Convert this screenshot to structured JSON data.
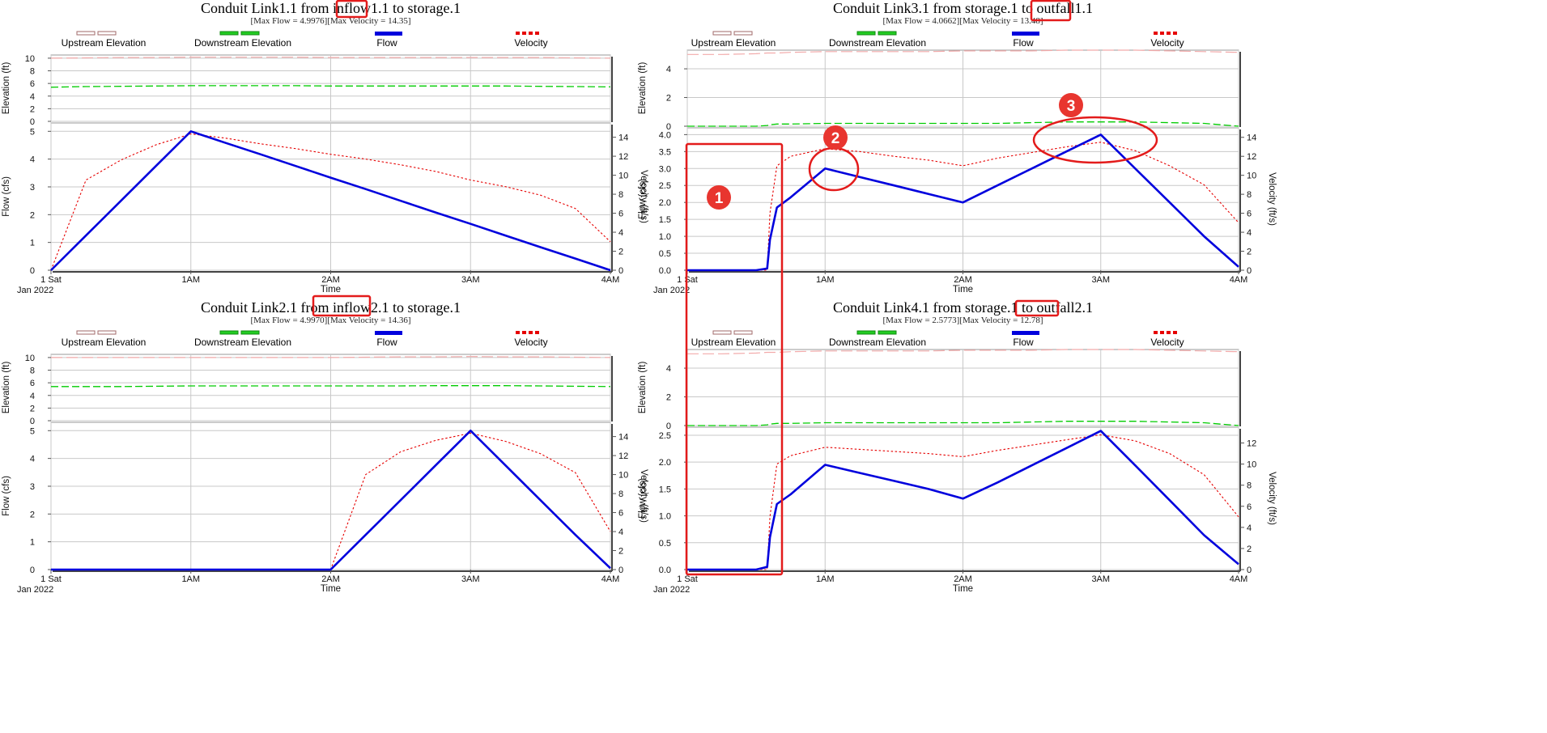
{
  "chart_data": [
    {
      "type": "line",
      "title": "Conduit Link1.1 from inflow1.1 to storage.1",
      "subtitle": "[Max Flow = 4.9976][Max Velocity = 14.35]",
      "xlabel": "Time",
      "x_ticks": [
        "1 Sat",
        "1AM",
        "2AM",
        "3AM",
        "4AM"
      ],
      "x_date_label": "Jan 2022",
      "elev_ylabel": "Elevation (ft)",
      "elev_ticks": [
        "0",
        "2",
        "4",
        "6",
        "8",
        "10"
      ],
      "elev_ylim": [
        0,
        10.5
      ],
      "flow_ylabel": "Flow (cfs)",
      "flow_ticks": [
        "0",
        "1",
        "2",
        "3",
        "4",
        "5"
      ],
      "flow_ylim": [
        0,
        5.3
      ],
      "vel_ylabel": "Velocity (ft/s)",
      "vel_ticks": [
        "0",
        "2",
        "4",
        "6",
        "8",
        "10",
        "12",
        "14"
      ],
      "vel_ylim": [
        0,
        15.5
      ],
      "legend": [
        "Upstream Elevation",
        "Downstream Elevation",
        "Flow",
        "Velocity"
      ],
      "x": [
        0,
        0.25,
        0.5,
        0.75,
        1,
        1.25,
        1.5,
        1.75,
        2,
        2.25,
        2.5,
        2.75,
        3,
        3.25,
        3.5,
        3.75,
        4
      ],
      "upstream_elevation": [
        10.0,
        10.05,
        10.1,
        10.1,
        10.15,
        10.15,
        10.15,
        10.15,
        10.1,
        10.1,
        10.1,
        10.1,
        10.1,
        10.1,
        10.1,
        10.05,
        10.0
      ],
      "downstream_elevation": [
        5.4,
        5.5,
        5.55,
        5.6,
        5.65,
        5.65,
        5.65,
        5.65,
        5.6,
        5.6,
        5.6,
        5.6,
        5.6,
        5.6,
        5.55,
        5.5,
        5.45
      ],
      "flow": [
        0,
        1.25,
        2.5,
        3.75,
        5.0,
        4.58,
        4.17,
        3.75,
        3.33,
        2.92,
        2.5,
        2.08,
        1.67,
        1.25,
        0.83,
        0.42,
        0.0
      ],
      "velocity": [
        0,
        9.5,
        11.6,
        13.2,
        14.35,
        13.9,
        13.3,
        12.8,
        12.2,
        11.7,
        11.1,
        10.4,
        9.5,
        8.8,
        7.9,
        6.5,
        3.0
      ],
      "annotations": [
        {
          "type": "box",
          "target": "inflow1.1"
        }
      ]
    },
    {
      "type": "line",
      "title": "Conduit Link3.1 from storage.1 to outfall1.1",
      "subtitle": "[Max Flow = 4.0662][Max Velocity = 13.48]",
      "xlabel": "Time",
      "x_ticks": [
        "1 Sat",
        "1AM",
        "2AM",
        "3AM",
        "4AM"
      ],
      "x_date_label": "Jan 2022",
      "elev_ylabel": "Elevation (ft)",
      "elev_ticks": [
        "0",
        "2",
        "4"
      ],
      "elev_ylim": [
        0,
        5.3
      ],
      "flow_ylabel": "Flow (cfs)",
      "flow_ticks": [
        "0.0",
        "0.5",
        "1.0",
        "1.5",
        "2.0",
        "2.5",
        "3.0",
        "3.5",
        "4.0"
      ],
      "flow_ylim": [
        0,
        4.2
      ],
      "vel_ylabel": "Velocity (ft/s)",
      "vel_ticks": [
        "0",
        "2",
        "4",
        "6",
        "8",
        "10",
        "12",
        "14"
      ],
      "vel_ylim": [
        0,
        15.0
      ],
      "legend": [
        "Upstream Elevation",
        "Downstream Elevation",
        "Flow",
        "Velocity"
      ],
      "x": [
        0,
        0.25,
        0.5,
        0.58,
        0.6,
        0.65,
        0.75,
        1,
        1.25,
        1.5,
        1.75,
        2,
        2.25,
        2.5,
        2.75,
        3,
        3.25,
        3.5,
        3.75,
        4
      ],
      "upstream_elevation": [
        5.0,
        5.0,
        5.05,
        5.1,
        5.1,
        5.1,
        5.15,
        5.2,
        5.2,
        5.2,
        5.2,
        5.25,
        5.25,
        5.25,
        5.3,
        5.3,
        5.3,
        5.25,
        5.2,
        5.15
      ],
      "downstream_elevation": [
        0.0,
        0.0,
        0.0,
        0.05,
        0.1,
        0.15,
        0.15,
        0.2,
        0.2,
        0.2,
        0.2,
        0.2,
        0.2,
        0.25,
        0.3,
        0.3,
        0.3,
        0.25,
        0.2,
        0.0
      ],
      "flow": [
        0,
        0,
        0,
        0.05,
        0.9,
        1.85,
        2.15,
        3.0,
        2.75,
        2.5,
        2.25,
        2.0,
        2.5,
        3.0,
        3.5,
        4.0,
        3.0,
        2.0,
        1.0,
        0.1
      ],
      "velocity": [
        0,
        0,
        0,
        0,
        6.0,
        11.0,
        12.0,
        12.8,
        12.5,
        12.0,
        11.6,
        11.0,
        11.8,
        12.4,
        13.0,
        13.48,
        12.6,
        11.0,
        9.0,
        5.0
      ],
      "annotations": [
        {
          "type": "box",
          "target": "outfall1.1"
        },
        {
          "type": "marker",
          "label": "1"
        },
        {
          "type": "marker",
          "label": "2"
        },
        {
          "type": "marker",
          "label": "3"
        }
      ]
    },
    {
      "type": "line",
      "title": "Conduit Link2.1 from inflow2.1 to storage.1",
      "subtitle": "[Max Flow = 4.9970][Max Velocity = 14.36]",
      "xlabel": "Time",
      "x_ticks": [
        "1 Sat",
        "1AM",
        "2AM",
        "3AM",
        "4AM"
      ],
      "x_date_label": "Jan 2022",
      "elev_ylabel": "Elevation (ft)",
      "elev_ticks": [
        "0",
        "2",
        "4",
        "6",
        "8",
        "10"
      ],
      "elev_ylim": [
        0,
        10.5
      ],
      "flow_ylabel": "Flow (cfs)",
      "flow_ticks": [
        "0",
        "1",
        "2",
        "3",
        "4",
        "5"
      ],
      "flow_ylim": [
        0,
        5.3
      ],
      "vel_ylabel": "Velocity (ft/s)",
      "vel_ticks": [
        "0",
        "2",
        "4",
        "6",
        "8",
        "10",
        "12",
        "14"
      ],
      "vel_ylim": [
        0,
        15.5
      ],
      "legend": [
        "Upstream Elevation",
        "Downstream Elevation",
        "Flow",
        "Velocity"
      ],
      "x": [
        0,
        0.5,
        1,
        1.5,
        2,
        2.25,
        2.5,
        2.75,
        3,
        3.25,
        3.5,
        3.75,
        4
      ],
      "upstream_elevation": [
        10.0,
        10.0,
        10.0,
        10.0,
        10.0,
        10.05,
        10.1,
        10.1,
        10.15,
        10.1,
        10.1,
        10.05,
        10.0
      ],
      "downstream_elevation": [
        5.4,
        5.4,
        5.5,
        5.5,
        5.5,
        5.5,
        5.5,
        5.55,
        5.55,
        5.55,
        5.5,
        5.45,
        5.4
      ],
      "flow": [
        0,
        0,
        0,
        0,
        0,
        1.25,
        2.5,
        3.75,
        5.0,
        3.75,
        2.5,
        1.25,
        0.05
      ],
      "velocity": [
        0,
        0,
        0,
        0,
        0,
        10.0,
        12.4,
        13.6,
        14.36,
        13.5,
        12.2,
        10.2,
        4.0
      ],
      "annotations": [
        {
          "type": "box",
          "target": "inflow2.1"
        }
      ]
    },
    {
      "type": "line",
      "title": "Conduit Link4.1 from storage.1 to outfall2.1",
      "subtitle": "[Max Flow = 2.5773][Max Velocity = 12.78]",
      "xlabel": "Time",
      "x_ticks": [
        "1 Sat",
        "1AM",
        "2AM",
        "3AM",
        "4AM"
      ],
      "x_date_label": "Jan 2022",
      "elev_ylabel": "Elevation (ft)",
      "elev_ticks": [
        "0",
        "2",
        "4"
      ],
      "elev_ylim": [
        0,
        5.3
      ],
      "flow_ylabel": "Flow (cfs)",
      "flow_ticks": [
        "0.0",
        "0.5",
        "1.0",
        "1.5",
        "2.0",
        "2.5"
      ],
      "flow_ylim": [
        0,
        2.65
      ],
      "vel_ylabel": "Velocity (ft/s)",
      "vel_ticks": [
        "0",
        "2",
        "4",
        "6",
        "8",
        "10",
        "12"
      ],
      "vel_ylim": [
        0,
        13.5
      ],
      "legend": [
        "Upstream Elevation",
        "Downstream Elevation",
        "Flow",
        "Velocity"
      ],
      "x": [
        0,
        0.25,
        0.5,
        0.58,
        0.6,
        0.65,
        0.75,
        1,
        1.25,
        1.5,
        1.75,
        2,
        2.25,
        2.5,
        2.75,
        3,
        3.25,
        3.5,
        3.75,
        4
      ],
      "upstream_elevation": [
        5.0,
        5.0,
        5.05,
        5.1,
        5.1,
        5.1,
        5.15,
        5.2,
        5.2,
        5.2,
        5.2,
        5.25,
        5.25,
        5.25,
        5.3,
        5.3,
        5.3,
        5.25,
        5.2,
        5.15
      ],
      "downstream_elevation": [
        0.0,
        0.0,
        0.0,
        0.05,
        0.1,
        0.15,
        0.15,
        0.2,
        0.2,
        0.2,
        0.2,
        0.2,
        0.2,
        0.25,
        0.3,
        0.3,
        0.3,
        0.25,
        0.2,
        0.0
      ],
      "flow": [
        0,
        0,
        0,
        0.05,
        0.6,
        1.22,
        1.4,
        1.95,
        1.8,
        1.65,
        1.5,
        1.32,
        1.62,
        1.94,
        2.26,
        2.58,
        1.94,
        1.29,
        0.64,
        0.1
      ],
      "velocity": [
        0,
        0,
        0,
        0,
        5.0,
        10.0,
        10.8,
        11.6,
        11.4,
        11.2,
        11.0,
        10.7,
        11.3,
        11.8,
        12.3,
        12.78,
        12.2,
        11.0,
        9.0,
        5.0
      ],
      "annotations": [
        {
          "type": "box",
          "target": "outfall2.1"
        },
        {
          "type": "box",
          "label": "1"
        }
      ]
    }
  ],
  "colors": {
    "flow": "#0000dd",
    "velocity": "#e60000",
    "downstream_elevation": "#00cc00",
    "upstream_elevation": "#f2aaaa",
    "annotation": "#e31b1b"
  }
}
